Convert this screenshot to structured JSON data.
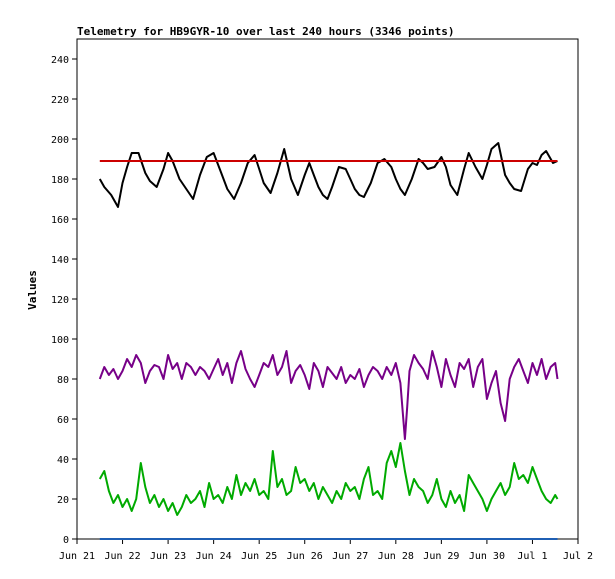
{
  "chart_data": {
    "type": "line",
    "title": "Telemetry for HB9GYR-10 over last 240 hours (3346 points)",
    "xlabel": "",
    "ylabel": "Values",
    "ylim": [
      0,
      250
    ],
    "yticks": [
      0,
      20,
      40,
      60,
      80,
      100,
      120,
      140,
      160,
      180,
      200,
      220,
      240
    ],
    "x_ticks": [
      {
        "label": "Jun 21",
        "x": 21.0
      },
      {
        "label": "Jun 22",
        "x": 22.0
      },
      {
        "label": "Jun 23",
        "x": 23.0
      },
      {
        "label": "Jun 24",
        "x": 24.0
      },
      {
        "label": "Jun 25",
        "x": 25.0
      },
      {
        "label": "Jun 26",
        "x": 26.0
      },
      {
        "label": "Jun 27",
        "x": 27.0
      },
      {
        "label": "Jun 28",
        "x": 28.0
      },
      {
        "label": "Jun 29",
        "x": 29.0
      },
      {
        "label": "Jun 30",
        "x": 30.0
      },
      {
        "label": "Jul 1",
        "x": 31.0
      },
      {
        "label": "Jul 2",
        "x": 32.0
      }
    ],
    "xlim": [
      21.0,
      32.0
    ],
    "grid": false,
    "series": [
      {
        "color": "#000000",
        "x": [
          21.5,
          21.6,
          21.75,
          21.9,
          22.0,
          22.1,
          22.2,
          22.35,
          22.5,
          22.6,
          22.75,
          22.9,
          23.0,
          23.1,
          23.25,
          23.4,
          23.55,
          23.7,
          23.85,
          24.0,
          24.15,
          24.3,
          24.45,
          24.6,
          24.75,
          24.9,
          25.0,
          25.1,
          25.25,
          25.4,
          25.55,
          25.7,
          25.85,
          26.0,
          26.1,
          26.2,
          26.3,
          26.4,
          26.5,
          26.6,
          26.75,
          26.9,
          27.0,
          27.1,
          27.2,
          27.3,
          27.45,
          27.6,
          27.75,
          27.9,
          28.0,
          28.1,
          28.2,
          28.35,
          28.5,
          28.6,
          28.7,
          28.85,
          29.0,
          29.1,
          29.2,
          29.35,
          29.5,
          29.6,
          29.75,
          29.9,
          30.0,
          30.1,
          30.25,
          30.4,
          30.5,
          30.6,
          30.75,
          30.9,
          31.0,
          31.1,
          31.2,
          31.3,
          31.45,
          31.55
        ],
        "y": [
          180,
          176,
          172,
          166,
          178,
          186,
          193,
          193,
          183,
          179,
          176,
          185,
          193,
          189,
          180,
          175,
          170,
          182,
          191,
          193,
          184,
          175,
          170,
          178,
          188,
          192,
          185,
          178,
          173,
          183,
          195,
          180,
          172,
          182,
          188,
          182,
          176,
          172,
          170,
          176,
          186,
          185,
          180,
          175,
          172,
          171,
          178,
          188,
          190,
          186,
          180,
          175,
          172,
          180,
          190,
          188,
          185,
          186,
          191,
          186,
          177,
          172,
          185,
          193,
          186,
          180,
          187,
          195,
          198,
          182,
          178,
          175,
          174,
          185,
          188,
          187,
          192,
          194,
          188,
          189
        ]
      },
      {
        "color": "#cc0000",
        "x": [
          21.5,
          31.55
        ],
        "y": [
          189,
          189
        ]
      },
      {
        "color": "#770088",
        "x": [
          21.5,
          21.6,
          21.7,
          21.8,
          21.9,
          22.0,
          22.1,
          22.2,
          22.3,
          22.4,
          22.5,
          22.6,
          22.7,
          22.8,
          22.9,
          23.0,
          23.1,
          23.2,
          23.3,
          23.4,
          23.5,
          23.6,
          23.7,
          23.8,
          23.9,
          24.0,
          24.1,
          24.2,
          24.3,
          24.4,
          24.5,
          24.6,
          24.7,
          24.8,
          24.9,
          25.0,
          25.1,
          25.2,
          25.3,
          25.4,
          25.5,
          25.6,
          25.7,
          25.8,
          25.9,
          26.0,
          26.1,
          26.2,
          26.3,
          26.4,
          26.5,
          26.6,
          26.7,
          26.8,
          26.9,
          27.0,
          27.1,
          27.2,
          27.3,
          27.4,
          27.5,
          27.6,
          27.7,
          27.8,
          27.9,
          28.0,
          28.1,
          28.2,
          28.25,
          28.3,
          28.4,
          28.5,
          28.6,
          28.7,
          28.8,
          28.9,
          29.0,
          29.1,
          29.2,
          29.3,
          29.4,
          29.5,
          29.6,
          29.7,
          29.8,
          29.9,
          30.0,
          30.1,
          30.2,
          30.3,
          30.4,
          30.5,
          30.6,
          30.7,
          30.8,
          30.9,
          31.0,
          31.1,
          31.2,
          31.3,
          31.4,
          31.5,
          31.55
        ],
        "y": [
          80,
          86,
          82,
          85,
          80,
          84,
          90,
          86,
          92,
          88,
          78,
          84,
          87,
          86,
          80,
          92,
          85,
          88,
          80,
          88,
          86,
          82,
          86,
          84,
          80,
          85,
          90,
          82,
          88,
          78,
          88,
          94,
          85,
          80,
          76,
          82,
          88,
          86,
          92,
          82,
          86,
          94,
          78,
          84,
          87,
          82,
          75,
          88,
          84,
          76,
          86,
          83,
          80,
          86,
          78,
          82,
          80,
          85,
          76,
          82,
          86,
          84,
          80,
          86,
          82,
          88,
          78,
          50,
          66,
          84,
          92,
          88,
          85,
          80,
          94,
          86,
          76,
          90,
          82,
          76,
          88,
          85,
          90,
          76,
          86,
          90,
          70,
          78,
          84,
          68,
          59,
          80,
          86,
          90,
          84,
          78,
          88,
          82,
          90,
          80,
          86,
          88,
          80
        ],
        "name": ""
      },
      {
        "color": "#00aa00",
        "x": [
          21.5,
          21.6,
          21.7,
          21.8,
          21.9,
          22.0,
          22.1,
          22.2,
          22.3,
          22.4,
          22.5,
          22.6,
          22.7,
          22.8,
          22.9,
          23.0,
          23.1,
          23.2,
          23.3,
          23.4,
          23.5,
          23.6,
          23.7,
          23.8,
          23.9,
          24.0,
          24.1,
          24.2,
          24.3,
          24.4,
          24.5,
          24.6,
          24.7,
          24.8,
          24.9,
          25.0,
          25.1,
          25.2,
          25.3,
          25.4,
          25.5,
          25.6,
          25.7,
          25.8,
          25.9,
          26.0,
          26.1,
          26.2,
          26.3,
          26.4,
          26.5,
          26.6,
          26.7,
          26.8,
          26.9,
          27.0,
          27.1,
          27.2,
          27.3,
          27.4,
          27.5,
          27.6,
          27.7,
          27.8,
          27.9,
          28.0,
          28.1,
          28.2,
          28.3,
          28.4,
          28.5,
          28.6,
          28.7,
          28.8,
          28.9,
          29.0,
          29.1,
          29.2,
          29.3,
          29.4,
          29.5,
          29.6,
          29.7,
          29.8,
          29.9,
          30.0,
          30.1,
          30.2,
          30.3,
          30.4,
          30.5,
          30.6,
          30.7,
          30.8,
          30.9,
          31.0,
          31.1,
          31.2,
          31.3,
          31.4,
          31.5,
          31.55
        ],
        "y": [
          30,
          34,
          24,
          18,
          22,
          16,
          20,
          14,
          20,
          38,
          26,
          18,
          22,
          16,
          20,
          14,
          18,
          12,
          16,
          22,
          18,
          20,
          24,
          16,
          28,
          20,
          22,
          18,
          26,
          20,
          32,
          22,
          28,
          24,
          30,
          22,
          24,
          20,
          44,
          26,
          30,
          22,
          24,
          36,
          28,
          30,
          24,
          28,
          20,
          26,
          22,
          18,
          24,
          20,
          28,
          24,
          26,
          20,
          30,
          36,
          22,
          24,
          20,
          38,
          44,
          36,
          48,
          34,
          22,
          30,
          26,
          24,
          18,
          22,
          30,
          20,
          16,
          24,
          18,
          22,
          14,
          32,
          28,
          24,
          20,
          14,
          20,
          24,
          28,
          22,
          26,
          38,
          30,
          32,
          28,
          36,
          30,
          24,
          20,
          18,
          22,
          20
        ],
        "name": ""
      },
      {
        "color": "#1f5fb4",
        "x": [
          21.5,
          31.55
        ],
        "y": [
          0,
          0
        ]
      }
    ]
  }
}
